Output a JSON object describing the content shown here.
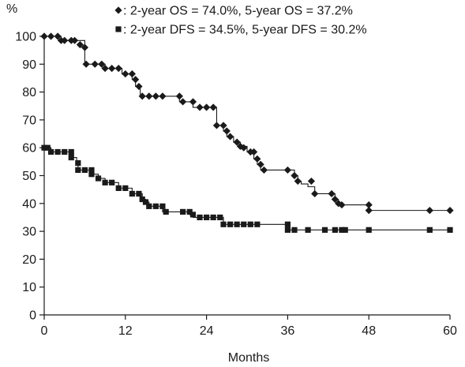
{
  "chart_data": {
    "type": "line",
    "ylabel": "%",
    "xlabel": "Months",
    "xlim": [
      0,
      60
    ],
    "ylim": [
      0,
      100
    ],
    "x_ticks": [
      0,
      12,
      24,
      36,
      48,
      60
    ],
    "y_ticks": [
      0,
      10,
      20,
      30,
      40,
      50,
      60,
      70,
      80,
      90,
      100
    ],
    "grid": false,
    "legend_position": "top-right",
    "series": [
      {
        "name": ": 2-year OS = 74.0%, 5-year OS = 37.2%",
        "marker": "diamond",
        "color": "#1a1a1a",
        "steps": [
          [
            0,
            100
          ],
          [
            2.5,
            98.5
          ],
          [
            4.5,
            98.5
          ],
          [
            6,
            90
          ],
          [
            8,
            90
          ],
          [
            9,
            88.5
          ],
          [
            11.5,
            86.5
          ],
          [
            13,
            84.5
          ],
          [
            13.5,
            82
          ],
          [
            14.2,
            78.5
          ],
          [
            20,
            78.5
          ],
          [
            20,
            76.5
          ],
          [
            22,
            74.5
          ],
          [
            25,
            74.5
          ],
          [
            25.5,
            68
          ],
          [
            26.5,
            66
          ],
          [
            27,
            64
          ],
          [
            28,
            62
          ],
          [
            29,
            60.5
          ],
          [
            30,
            58.5
          ],
          [
            31,
            56
          ],
          [
            31.5,
            54
          ],
          [
            32,
            52
          ],
          [
            36,
            52
          ],
          [
            37,
            50
          ],
          [
            37.5,
            48
          ],
          [
            38,
            47
          ],
          [
            39,
            46
          ],
          [
            40,
            43.5
          ],
          [
            42.5,
            43.5
          ],
          [
            43,
            41.5
          ],
          [
            43.5,
            40
          ],
          [
            44,
            39.5
          ],
          [
            48,
            37.5
          ],
          [
            60,
            37.5
          ]
        ],
        "markers": [
          [
            0,
            100
          ],
          [
            1,
            100
          ],
          [
            2,
            100
          ],
          [
            2.5,
            98.5
          ],
          [
            3,
            98.5
          ],
          [
            4,
            98.5
          ],
          [
            4.5,
            98.5
          ],
          [
            5.3,
            97
          ],
          [
            6,
            96
          ],
          [
            6.2,
            90
          ],
          [
            7.5,
            90
          ],
          [
            8.5,
            90
          ],
          [
            9,
            88.5
          ],
          [
            10,
            88.5
          ],
          [
            11,
            88.5
          ],
          [
            12,
            86.5
          ],
          [
            13,
            86.5
          ],
          [
            13.5,
            84.5
          ],
          [
            14,
            82
          ],
          [
            14.5,
            78.5
          ],
          [
            15.5,
            78.5
          ],
          [
            16.5,
            78.5
          ],
          [
            17.5,
            78.5
          ],
          [
            20,
            78.5
          ],
          [
            20.5,
            76.5
          ],
          [
            22,
            76.5
          ],
          [
            23,
            74.5
          ],
          [
            24,
            74.5
          ],
          [
            25,
            74.5
          ],
          [
            25.5,
            68
          ],
          [
            26.5,
            68
          ],
          [
            27,
            66
          ],
          [
            27.5,
            64
          ],
          [
            28.5,
            62
          ],
          [
            29,
            60.5
          ],
          [
            29.5,
            60
          ],
          [
            30.5,
            58.5
          ],
          [
            31,
            58.5
          ],
          [
            31.5,
            56
          ],
          [
            32,
            54
          ],
          [
            32.5,
            52
          ],
          [
            36,
            52
          ],
          [
            37,
            50
          ],
          [
            37.5,
            48
          ],
          [
            39.5,
            48
          ],
          [
            40,
            43.5
          ],
          [
            42.5,
            43.5
          ],
          [
            43,
            41.5
          ],
          [
            43.5,
            40
          ],
          [
            44,
            39.5
          ],
          [
            48,
            39.5
          ],
          [
            48,
            37.5
          ],
          [
            57,
            37.5
          ],
          [
            60,
            37.5
          ]
        ]
      },
      {
        "name": ": 2-year DFS = 34.5%, 5-year DFS = 30.2%",
        "marker": "square",
        "color": "#1a1a1a",
        "steps": [
          [
            0,
            60
          ],
          [
            1,
            58.5
          ],
          [
            4,
            56.5
          ],
          [
            4.8,
            54.5
          ],
          [
            5,
            52
          ],
          [
            7,
            50.5
          ],
          [
            8,
            49
          ],
          [
            9,
            47.5
          ],
          [
            11,
            45.5
          ],
          [
            13,
            43.5
          ],
          [
            14.5,
            41.5
          ],
          [
            15,
            40.5
          ],
          [
            15.5,
            39
          ],
          [
            17.5,
            37
          ],
          [
            20.5,
            37
          ],
          [
            21.5,
            36
          ],
          [
            22,
            35
          ],
          [
            26.5,
            32.5
          ],
          [
            35.5,
            32.5
          ],
          [
            36,
            30.5
          ],
          [
            60,
            30.5
          ]
        ],
        "markers": [
          [
            0,
            60
          ],
          [
            0.5,
            60
          ],
          [
            1,
            58.5
          ],
          [
            2,
            58.5
          ],
          [
            3,
            58.5
          ],
          [
            4,
            58.5
          ],
          [
            4,
            56.5
          ],
          [
            5,
            54.5
          ],
          [
            5,
            52
          ],
          [
            6,
            52
          ],
          [
            7,
            52
          ],
          [
            7,
            50.5
          ],
          [
            8,
            49
          ],
          [
            9,
            47.5
          ],
          [
            10,
            47.5
          ],
          [
            11,
            45.5
          ],
          [
            12,
            45.5
          ],
          [
            13,
            43.5
          ],
          [
            14,
            43.5
          ],
          [
            14.5,
            41.5
          ],
          [
            15,
            40.5
          ],
          [
            15.5,
            39
          ],
          [
            16.5,
            39
          ],
          [
            17.5,
            39
          ],
          [
            18,
            37
          ],
          [
            20.5,
            37
          ],
          [
            21.5,
            37
          ],
          [
            22,
            36
          ],
          [
            23,
            35
          ],
          [
            24,
            35
          ],
          [
            25,
            35
          ],
          [
            26,
            35
          ],
          [
            26.5,
            32.5
          ],
          [
            27.5,
            32.5
          ],
          [
            28.5,
            32.5
          ],
          [
            29.5,
            32.5
          ],
          [
            30.5,
            32.5
          ],
          [
            31.5,
            32.5
          ],
          [
            36,
            32.5
          ],
          [
            36,
            30.5
          ],
          [
            37,
            30.5
          ],
          [
            39,
            30.5
          ],
          [
            41.5,
            30.5
          ],
          [
            43,
            30.5
          ],
          [
            44,
            30.5
          ],
          [
            44.5,
            30.5
          ],
          [
            48,
            30.5
          ],
          [
            57,
            30.5
          ],
          [
            60,
            30.5
          ]
        ]
      }
    ]
  }
}
